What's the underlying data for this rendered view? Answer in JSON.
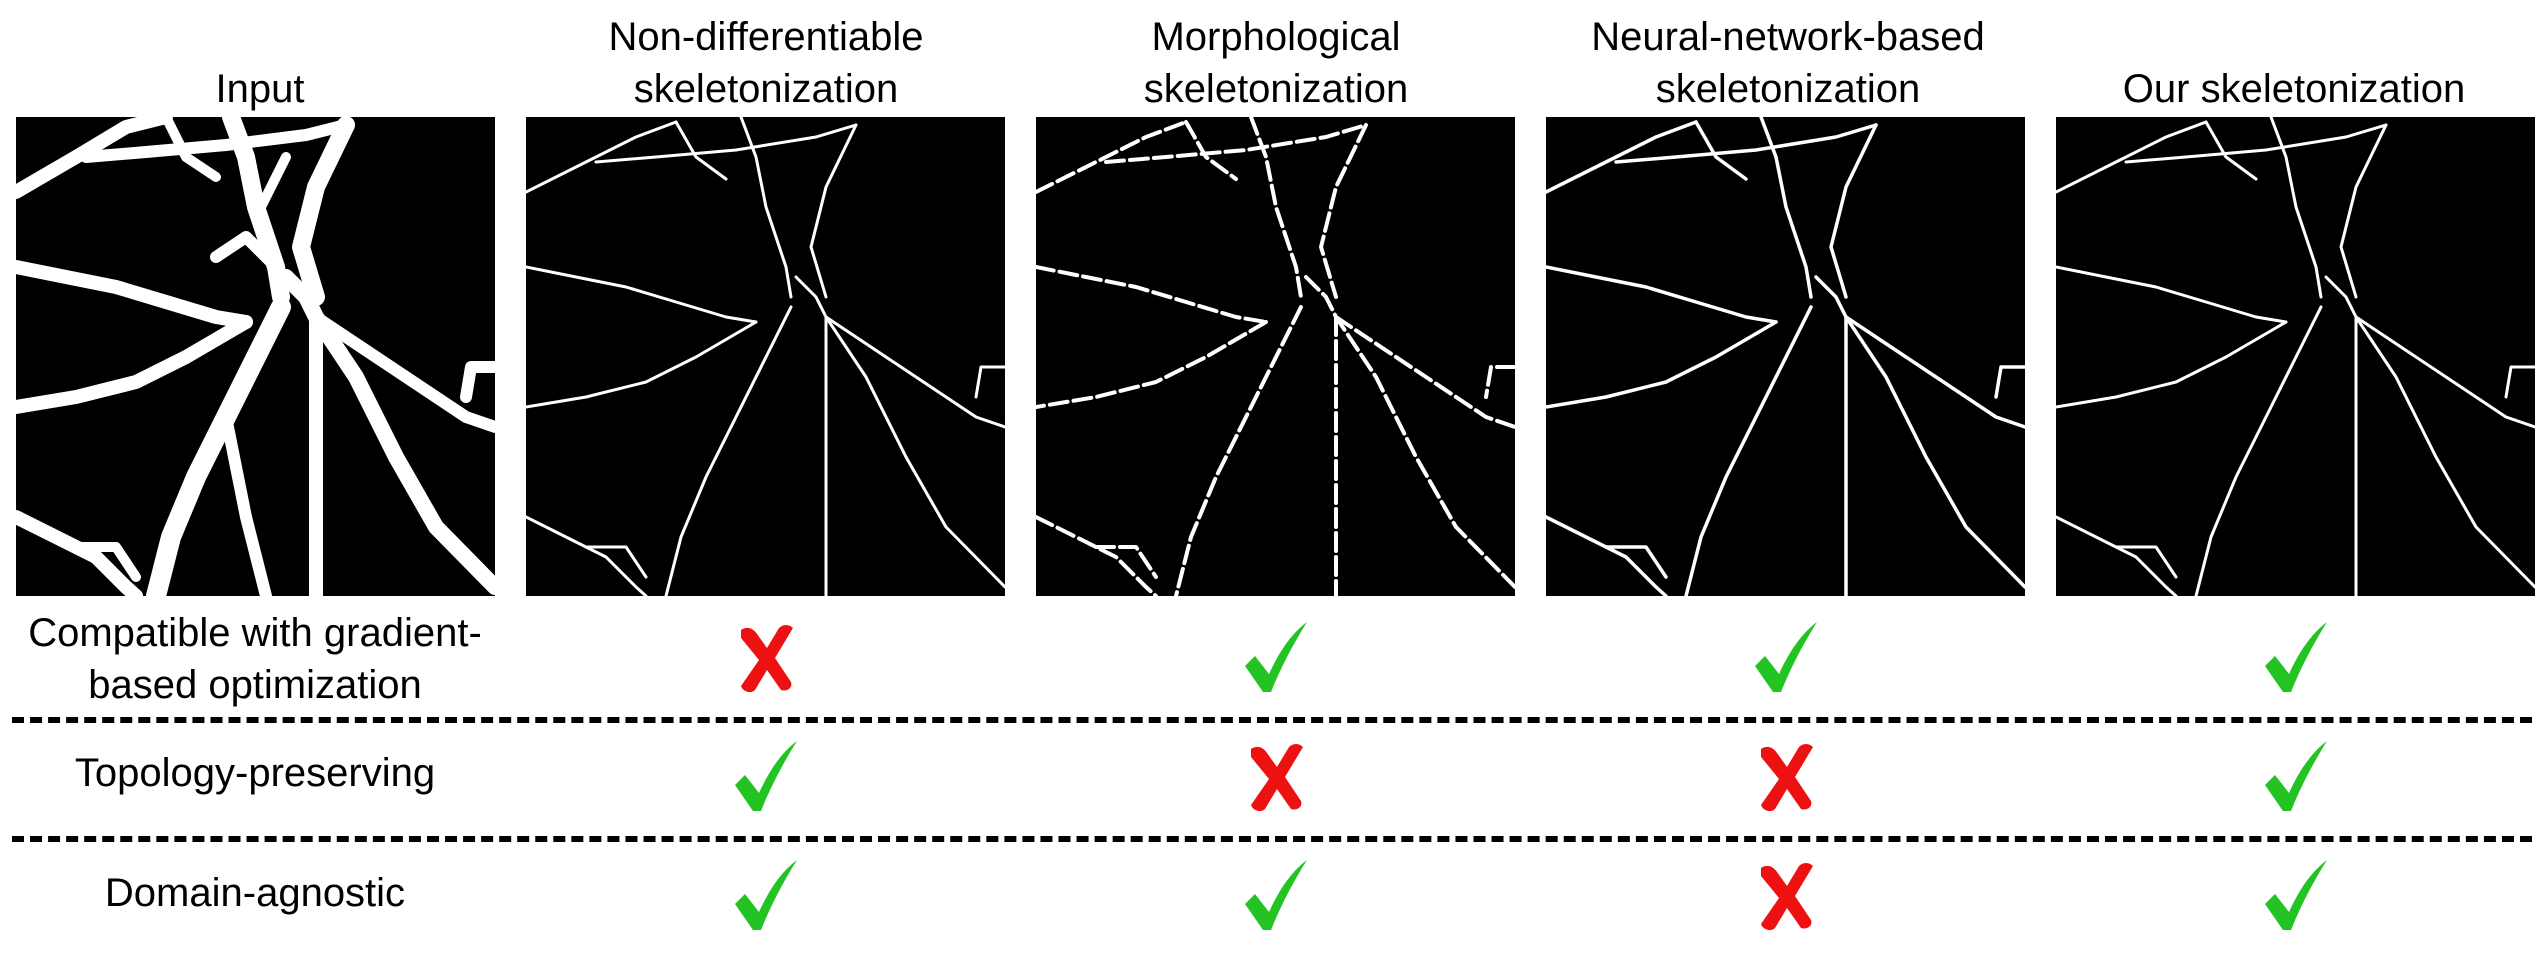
{
  "columns": [
    {
      "id": "input",
      "title_lines": [
        "Input"
      ]
    },
    {
      "id": "nondiff",
      "title_lines": [
        "Non-differentiable",
        "skeletonization"
      ]
    },
    {
      "id": "morph",
      "title_lines": [
        "Morphological",
        "skeletonization"
      ]
    },
    {
      "id": "nn",
      "title_lines": [
        "Neural-network-based",
        "skeletonization"
      ]
    },
    {
      "id": "ours",
      "title_lines": [
        "Our skeletonization"
      ]
    }
  ],
  "rows": [
    {
      "id": "gradient",
      "label_lines": [
        "Compatible with gradient-",
        "based optimization"
      ],
      "values": [
        "cross",
        "check",
        "check",
        "check"
      ]
    },
    {
      "id": "topology",
      "label_lines": [
        "Topology-preserving"
      ],
      "values": [
        "check",
        "cross",
        "cross",
        "check"
      ]
    },
    {
      "id": "domain",
      "label_lines": [
        "Domain-agnostic"
      ],
      "values": [
        "check",
        "check",
        "cross",
        "check"
      ]
    }
  ],
  "icons": {
    "check": "checkmark-icon",
    "cross": "cross-icon"
  },
  "colors": {
    "check": "#22c322",
    "cross": "#ee1111",
    "vessel": "#ffffff",
    "background": "#000000"
  }
}
